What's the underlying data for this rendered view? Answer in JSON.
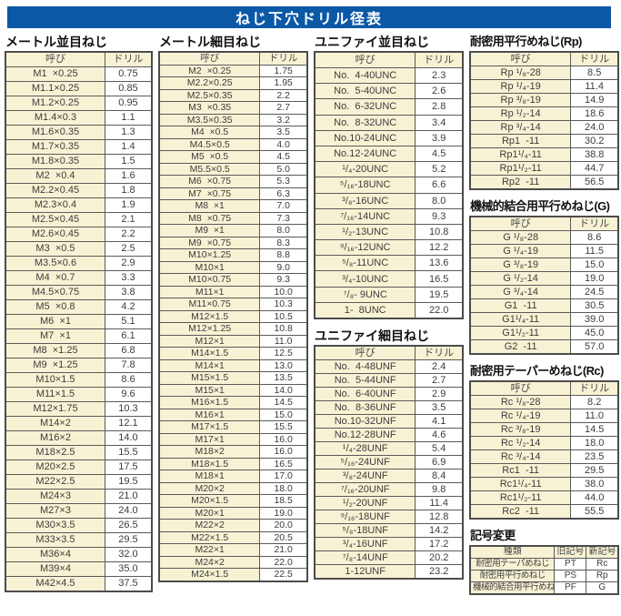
{
  "title": "ねじ下穴ドリル径表",
  "colors": {
    "title_bar_bg": "#0b58a6",
    "title_text": "#ffffff",
    "header_cell_bg": "#f8f2d4",
    "name_cell_bg": "#f8f2d4",
    "value_cell_bg": "#ffffff",
    "table_border": "#4c4c4c",
    "body_text": "#3c3c3c"
  },
  "tables": {
    "metric_coarse": {
      "heading": "メートル並目ねじ",
      "columns": [
        "呼び",
        "ドリル"
      ],
      "rows": [
        [
          "M1  ×0.25",
          "0.75"
        ],
        [
          "M1.1×0.25",
          "0.85"
        ],
        [
          "M1.2×0.25",
          "0.95"
        ],
        [
          "M1.4×0.3",
          "1.1"
        ],
        [
          "M1.6×0.35",
          "1.3"
        ],
        [
          "M1.7×0.35",
          "1.4"
        ],
        [
          "M1.8×0.35",
          "1.5"
        ],
        [
          "M2  ×0.4",
          "1.6"
        ],
        [
          "M2.2×0.45",
          "1.8"
        ],
        [
          "M2.3×0.4",
          "1.9"
        ],
        [
          "M2.5×0.45",
          "2.1"
        ],
        [
          "M2.6×0.45",
          "2.2"
        ],
        [
          "M3  ×0.5",
          "2.5"
        ],
        [
          "M3.5×0.6",
          "2.9"
        ],
        [
          "M4  ×0.7",
          "3.3"
        ],
        [
          "M4.5×0.75",
          "3.8"
        ],
        [
          "M5  ×0.8",
          "4.2"
        ],
        [
          "M6  ×1",
          "5.1"
        ],
        [
          "M7  ×1",
          "6.1"
        ],
        [
          "M8  ×1.25",
          "6.8"
        ],
        [
          "M9  ×1.25",
          "7.8"
        ],
        [
          "M10×1.5",
          "8.6"
        ],
        [
          "M11×1.5",
          "9.6"
        ],
        [
          "M12×1.75",
          "10.3"
        ],
        [
          "M14×2",
          "12.1"
        ],
        [
          "M16×2",
          "14.0"
        ],
        [
          "M18×2.5",
          "15.5"
        ],
        [
          "M20×2.5",
          "17.5"
        ],
        [
          "M22×2.5",
          "19.5"
        ],
        [
          "M24×3",
          "21.0"
        ],
        [
          "M27×3",
          "24.0"
        ],
        [
          "M30×3.5",
          "26.5"
        ],
        [
          "M33×3.5",
          "29.5"
        ],
        [
          "M36×4",
          "32.0"
        ],
        [
          "M39×4",
          "35.0"
        ],
        [
          "M42×4.5",
          "37.5"
        ]
      ]
    },
    "metric_fine": {
      "heading": "メートル細目ねじ",
      "columns": [
        "呼び",
        "ドリル"
      ],
      "rows": [
        [
          "M2  ×0.25",
          "1.75"
        ],
        [
          "M2.2×0.25",
          "1.95"
        ],
        [
          "M2.5×0.35",
          "2.2"
        ],
        [
          "M3  ×0.35",
          "2.7"
        ],
        [
          "M3.5×0.35",
          "3.2"
        ],
        [
          "M4  ×0.5",
          "3.5"
        ],
        [
          "M4.5×0.5",
          "4.0"
        ],
        [
          "M5  ×0.5",
          "4.5"
        ],
        [
          "M5.5×0.5",
          "5.0"
        ],
        [
          "M6  ×0.75",
          "5.3"
        ],
        [
          "M7  ×0.75",
          "6.3"
        ],
        [
          "M8  ×1",
          "7.0"
        ],
        [
          "M8  ×0.75",
          "7.3"
        ],
        [
          "M9  ×1",
          "8.0"
        ],
        [
          "M9  ×0.75",
          "8.3"
        ],
        [
          "M10×1.25",
          "8.8"
        ],
        [
          "M10×1",
          "9.0"
        ],
        [
          "M10×0.75",
          "9.3"
        ],
        [
          "M11×1",
          "10.0"
        ],
        [
          "M11×0.75",
          "10.3"
        ],
        [
          "M12×1.5",
          "10.5"
        ],
        [
          "M12×1.25",
          "10.8"
        ],
        [
          "M12×1",
          "11.0"
        ],
        [
          "M14×1.5",
          "12.5"
        ],
        [
          "M14×1",
          "13.0"
        ],
        [
          "M15×1.5",
          "13.5"
        ],
        [
          "M15×1",
          "14.0"
        ],
        [
          "M16×1.5",
          "14.5"
        ],
        [
          "M16×1",
          "15.0"
        ],
        [
          "M17×1.5",
          "15.5"
        ],
        [
          "M17×1",
          "16.0"
        ],
        [
          "M18×2",
          "16.0"
        ],
        [
          "M18×1.5",
          "16.5"
        ],
        [
          "M18×1",
          "17.0"
        ],
        [
          "M20×2",
          "18.0"
        ],
        [
          "M20×1.5",
          "18.5"
        ],
        [
          "M20×1",
          "19.0"
        ],
        [
          "M22×2",
          "20.0"
        ],
        [
          "M22×1.5",
          "20.5"
        ],
        [
          "M22×1",
          "21.0"
        ],
        [
          "M24×2",
          "22.0"
        ],
        [
          "M24×1.5",
          "22.5"
        ]
      ]
    },
    "unified_coarse": {
      "heading": "ユニファイ並目ねじ",
      "columns": [
        "呼び",
        "ドリル"
      ],
      "rows": [
        [
          "No.  4-40UNC",
          "2.3"
        ],
        [
          "No.  5-40UNC",
          "2.6"
        ],
        [
          "No.  6-32UNC",
          "2.8"
        ],
        [
          "No.  8-32UNC",
          "3.4"
        ],
        [
          "No.10-24UNC",
          "3.9"
        ],
        [
          "No.12-24UNC",
          "4.5"
        ],
        [
          "¹/₄-20UNC",
          "5.2"
        ],
        [
          "⁵/₁₆-18UNC",
          "6.6"
        ],
        [
          "³/₈-16UNC",
          "8.0"
        ],
        [
          "⁷/₁₆-14UNC",
          "9.3"
        ],
        [
          "¹/₂-13UNC",
          "10.8"
        ],
        [
          "⁹/₁₆-12UNC",
          "12.2"
        ],
        [
          "⁵/₈-11UNC",
          "13.6"
        ],
        [
          "³/₄-10UNC",
          "16.5"
        ],
        [
          "⁷/₈- 9UNC",
          "19.5"
        ],
        [
          "1-  8UNC",
          "22.0"
        ]
      ]
    },
    "unified_fine": {
      "heading": "ユニファイ細目ねじ",
      "columns": [
        "呼び",
        "ドリル"
      ],
      "rows": [
        [
          "No.  4-48UNF",
          "2.4"
        ],
        [
          "No.  5-44UNF",
          "2.7"
        ],
        [
          "No.  6-40UNF",
          "2.9"
        ],
        [
          "No.  8-36UNF",
          "3.5"
        ],
        [
          "No.10-32UNF",
          "4.1"
        ],
        [
          "No.12-28UNF",
          "4.6"
        ],
        [
          "¹/₄-28UNF",
          "5.4"
        ],
        [
          "⁵/₁₆-24UNF",
          "6.9"
        ],
        [
          "³/₈-24UNF",
          "8.4"
        ],
        [
          "⁷/₁₆-20UNF",
          "9.8"
        ],
        [
          "¹/₂-20UNF",
          "11.4"
        ],
        [
          "⁹/₁₆-18UNF",
          "12.8"
        ],
        [
          "⁵/₈-18UNF",
          "14.2"
        ],
        [
          "³/₄-16UNF",
          "17.2"
        ],
        [
          "⁷/₈-14UNF",
          "20.2"
        ],
        [
          "1-12UNF",
          "23.2"
        ]
      ]
    },
    "rp": {
      "heading": "耐密用平行めねじ(Rp)",
      "columns": [
        "呼び",
        "ドリル"
      ],
      "rows": [
        [
          "Rp ¹/₈-28",
          "8.5"
        ],
        [
          "Rp ¹/₄-19",
          "11.4"
        ],
        [
          "Rp ³/₈-19",
          "14.9"
        ],
        [
          "Rp ¹/₂-14",
          "18.6"
        ],
        [
          "Rp ³/₄-14",
          "24.0"
        ],
        [
          "Rp1  -11",
          "30.2"
        ],
        [
          "Rp1¹/₄-11",
          "38.8"
        ],
        [
          "Rp1¹/₂-11",
          "44.7"
        ],
        [
          "Rp2  -11",
          "56.5"
        ]
      ]
    },
    "g": {
      "heading": "機械的結合用平行めねじ(G)",
      "columns": [
        "呼び",
        "ドリル"
      ],
      "rows": [
        [
          "G ¹/₈-28",
          "8.6"
        ],
        [
          "G ¹/₄-19",
          "11.5"
        ],
        [
          "G ³/₈-19",
          "15.0"
        ],
        [
          "G ¹/₂-14",
          "19.0"
        ],
        [
          "G ³/₄-14",
          "24.5"
        ],
        [
          "G1  -11",
          "30.5"
        ],
        [
          "G1¹/₄-11",
          "39.0"
        ],
        [
          "G1¹/₂-11",
          "45.0"
        ],
        [
          "G2  -11",
          "57.0"
        ]
      ]
    },
    "rc": {
      "heading": "耐密用テーパーめねじ(Rc)",
      "columns": [
        "呼び",
        "ドリル"
      ],
      "rows": [
        [
          "Rc ¹/₈-28",
          "8.2"
        ],
        [
          "Rc ¹/₄-19",
          "11.0"
        ],
        [
          "Rc ³/₈-19",
          "14.5"
        ],
        [
          "Rc ¹/₂-14",
          "18.0"
        ],
        [
          "Rc ³/₄-14",
          "23.5"
        ],
        [
          "Rc1  -11",
          "29.5"
        ],
        [
          "Rc1¹/₄-11",
          "38.0"
        ],
        [
          "Rc1¹/₂-11",
          "44.0"
        ],
        [
          "Rc2  -11",
          "55.5"
        ]
      ]
    },
    "symbol_change": {
      "heading": "記号変更",
      "columns": [
        "種類",
        "旧記号",
        "新記号"
      ],
      "rows": [
        [
          "耐密用テーパめねじ",
          "PT",
          "Rc"
        ],
        [
          "耐密用平行めねじ",
          "PS",
          "Rp"
        ],
        [
          "機械的結合用平行めねじ",
          "PF",
          "G"
        ]
      ]
    }
  }
}
